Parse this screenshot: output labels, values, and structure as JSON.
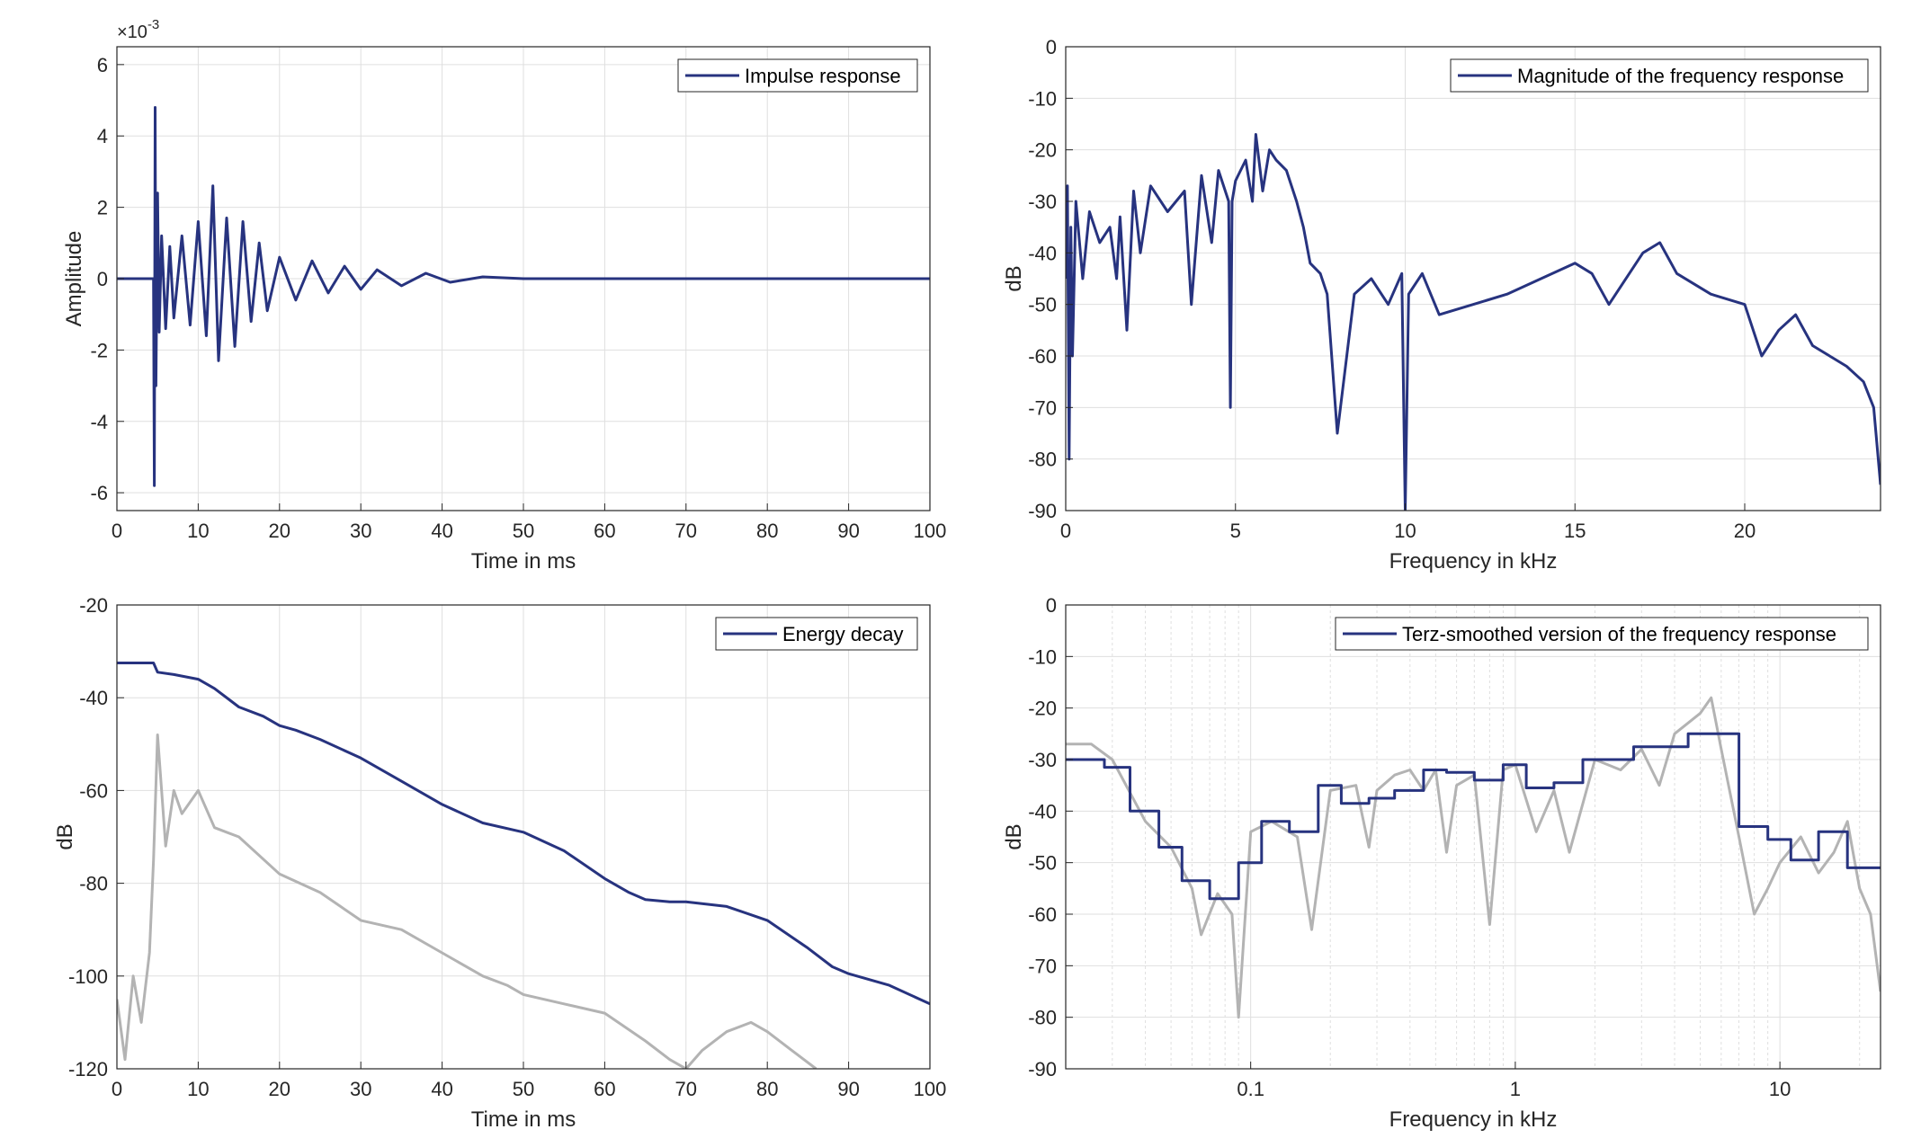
{
  "colors": {
    "series": "#27337f",
    "gray": "#b3b3b3",
    "grid": "#dfdfdf",
    "axis": "#262626"
  },
  "chart_data": [
    {
      "id": "impulse",
      "type": "line",
      "title": "",
      "xlabel": "Time in ms",
      "ylabel": "Amplitude",
      "xscale": "linear",
      "xlim": [
        0,
        100
      ],
      "ylim": [
        -6.5,
        6.5
      ],
      "xticks": [
        0,
        10,
        20,
        30,
        40,
        50,
        60,
        70,
        80,
        90,
        100
      ],
      "xtick_labels": [
        "0",
        "10",
        "20",
        "30",
        "40",
        "50",
        "60",
        "70",
        "80",
        "90",
        "100"
      ],
      "yticks": [
        -6,
        -4,
        -2,
        0,
        2,
        4,
        6
      ],
      "ytick_labels": [
        "-6",
        "-4",
        "-2",
        "0",
        "2",
        "4",
        "6"
      ],
      "y_exponent_label": "×10",
      "y_exponent": "-3",
      "grid": true,
      "legend": "top-right",
      "series": [
        {
          "name": "Impulse response",
          "color": "#27337f",
          "x": [
            0,
            4.5,
            4.6,
            4.7,
            4.8,
            5.0,
            5.2,
            5.5,
            6,
            6.5,
            7,
            8,
            9,
            10,
            11,
            11.8,
            12.5,
            13.5,
            14.5,
            15.5,
            16.5,
            17.5,
            18.5,
            20,
            22,
            24,
            26,
            28,
            30,
            32,
            35,
            38,
            41,
            45,
            50,
            60,
            70,
            80,
            90,
            100
          ],
          "y": [
            0,
            0,
            -5.8,
            4.8,
            -3.0,
            2.4,
            -1.5,
            1.2,
            -1.4,
            0.9,
            -1.1,
            1.2,
            -1.3,
            1.6,
            -1.6,
            2.6,
            -2.3,
            1.7,
            -1.9,
            1.6,
            -1.2,
            1.0,
            -0.9,
            0.6,
            -0.6,
            0.5,
            -0.4,
            0.35,
            -0.3,
            0.25,
            -0.2,
            0.15,
            -0.1,
            0.05,
            0,
            0,
            0,
            0,
            0,
            0
          ]
        }
      ]
    },
    {
      "id": "magnitude",
      "type": "line",
      "title": "",
      "xlabel": "Frequency in kHz",
      "ylabel": "dB",
      "xscale": "linear",
      "xlim": [
        0,
        24
      ],
      "ylim": [
        -90,
        0
      ],
      "xticks": [
        0,
        5,
        10,
        15,
        20
      ],
      "xtick_labels": [
        "0",
        "5",
        "10",
        "15",
        "20"
      ],
      "yticks": [
        -90,
        -80,
        -70,
        -60,
        -50,
        -40,
        -30,
        -20,
        -10,
        0
      ],
      "ytick_labels": [
        "-90",
        "-80",
        "-70",
        "-60",
        "-50",
        "-40",
        "-30",
        "-20",
        "-10",
        "0"
      ],
      "grid": true,
      "legend": "top-right",
      "series": [
        {
          "name": "Magnitude of the frequency response",
          "color": "#27337f",
          "x": [
            0,
            0.05,
            0.1,
            0.15,
            0.2,
            0.3,
            0.5,
            0.7,
            1.0,
            1.3,
            1.5,
            1.6,
            1.8,
            2.0,
            2.2,
            2.5,
            3.0,
            3.5,
            3.7,
            4.0,
            4.3,
            4.5,
            4.8,
            4.85,
            4.9,
            5.0,
            5.3,
            5.5,
            5.6,
            5.8,
            6.0,
            6.2,
            6.5,
            6.8,
            7.0,
            7.2,
            7.5,
            7.7,
            8.0,
            8.5,
            9.0,
            9.5,
            9.9,
            10.0,
            10.1,
            10.5,
            11,
            12,
            13,
            14,
            15,
            15.5,
            16,
            17,
            17.5,
            18,
            19,
            20,
            20.5,
            21,
            21.5,
            22,
            22.5,
            23,
            23.5,
            23.8,
            24
          ],
          "y": [
            -45,
            -27,
            -80,
            -35,
            -60,
            -30,
            -45,
            -32,
            -38,
            -35,
            -45,
            -33,
            -55,
            -28,
            -40,
            -27,
            -32,
            -28,
            -50,
            -25,
            -38,
            -24,
            -30,
            -70,
            -30,
            -26,
            -22,
            -30,
            -17,
            -28,
            -20,
            -22,
            -24,
            -30,
            -35,
            -42,
            -44,
            -48,
            -75,
            -48,
            -45,
            -50,
            -44,
            -90,
            -48,
            -44,
            -52,
            -50,
            -48,
            -45,
            -42,
            -44,
            -50,
            -40,
            -38,
            -44,
            -48,
            -50,
            -60,
            -55,
            -52,
            -58,
            -60,
            -62,
            -65,
            -70,
            -85
          ]
        }
      ]
    },
    {
      "id": "energy",
      "type": "line",
      "title": "",
      "xlabel": "Time in ms",
      "ylabel": "dB",
      "xscale": "linear",
      "xlim": [
        0,
        100
      ],
      "ylim": [
        -120,
        -20
      ],
      "xticks": [
        0,
        10,
        20,
        30,
        40,
        50,
        60,
        70,
        80,
        90,
        100
      ],
      "xtick_labels": [
        "0",
        "10",
        "20",
        "30",
        "40",
        "50",
        "60",
        "70",
        "80",
        "90",
        "100"
      ],
      "yticks": [
        -120,
        -100,
        -80,
        -60,
        -40,
        -20
      ],
      "ytick_labels": [
        "-120",
        "-100",
        "-80",
        "-60",
        "-40",
        "-20"
      ],
      "grid": true,
      "legend": "top-right",
      "series": [
        {
          "name": "Energy decay",
          "color": "#27337f",
          "x": [
            0,
            4.5,
            5,
            7,
            10,
            12,
            15,
            18,
            20,
            22,
            25,
            30,
            35,
            40,
            45,
            50,
            55,
            60,
            63,
            65,
            68,
            70,
            75,
            80,
            85,
            88,
            90,
            95,
            100
          ],
          "y": [
            -32.5,
            -32.5,
            -34.5,
            -35,
            -36,
            -38,
            -42,
            -44,
            -46,
            -47,
            -49,
            -53,
            -58,
            -63,
            -67,
            -69,
            -73,
            -79,
            -82,
            -83.5,
            -84,
            -84,
            -85,
            -88,
            -94,
            -98,
            -99.5,
            -102,
            -106
          ]
        },
        {
          "name": "",
          "color": "#b3b3b3",
          "x": [
            0,
            1,
            2,
            3,
            4,
            4.5,
            5,
            6,
            7,
            8,
            10,
            12,
            15,
            20,
            25,
            30,
            35,
            40,
            45,
            48,
            50,
            55,
            60,
            65,
            68,
            70,
            72,
            75,
            78,
            80,
            83,
            86
          ],
          "y": [
            -105,
            -118,
            -100,
            -110,
            -95,
            -75,
            -48,
            -72,
            -60,
            -65,
            -60,
            -68,
            -70,
            -78,
            -82,
            -88,
            -90,
            -95,
            -100,
            -102,
            -104,
            -106,
            -108,
            -114,
            -118,
            -120,
            -116,
            -112,
            -110,
            -112,
            -116,
            -120
          ]
        }
      ]
    },
    {
      "id": "terz",
      "type": "line",
      "title": "",
      "xlabel": "Frequency in kHz",
      "ylabel": "dB",
      "xscale": "log",
      "xlim": [
        0.02,
        24
      ],
      "ylim": [
        -90,
        0
      ],
      "xticks": [
        0.1,
        1,
        10
      ],
      "xtick_labels": [
        "0.1",
        "1",
        "10"
      ],
      "yticks": [
        -90,
        -80,
        -70,
        -60,
        -50,
        -40,
        -30,
        -20,
        -10,
        0
      ],
      "ytick_labels": [
        "-90",
        "-80",
        "-70",
        "-60",
        "-50",
        "-40",
        "-30",
        "-20",
        "-10",
        "0"
      ],
      "grid": true,
      "legend": "top-right",
      "series": [
        {
          "name": "Terz-smoothed version of the frequency response",
          "color": "#27337f",
          "step": true,
          "x": [
            0.02,
            0.028,
            0.035,
            0.045,
            0.055,
            0.07,
            0.09,
            0.11,
            0.14,
            0.18,
            0.22,
            0.28,
            0.35,
            0.45,
            0.55,
            0.7,
            0.9,
            1.1,
            1.4,
            1.8,
            2.2,
            2.8,
            3.5,
            4.5,
            5.5,
            7.0,
            9.0,
            11,
            14,
            18,
            24
          ],
          "y": [
            -30,
            -31.5,
            -40,
            -47,
            -53.5,
            -57,
            -50,
            -42,
            -44,
            -35,
            -38.5,
            -37.5,
            -36,
            -32,
            -32.5,
            -34,
            -31,
            -35.5,
            -34.5,
            -30,
            -30,
            -27.5,
            -27.5,
            -25,
            -25,
            -43,
            -45.5,
            -49.5,
            -44,
            -51,
            -51
          ]
        },
        {
          "name": "",
          "color": "#b3b3b3",
          "x": [
            0.02,
            0.025,
            0.03,
            0.04,
            0.05,
            0.06,
            0.065,
            0.075,
            0.085,
            0.09,
            0.1,
            0.12,
            0.15,
            0.17,
            0.2,
            0.25,
            0.28,
            0.3,
            0.35,
            0.4,
            0.45,
            0.5,
            0.55,
            0.6,
            0.7,
            0.8,
            0.9,
            1.0,
            1.2,
            1.4,
            1.6,
            2.0,
            2.5,
            3.0,
            3.5,
            4.0,
            5.0,
            5.5,
            6.0,
            7.0,
            8.0,
            9.0,
            10,
            12,
            14,
            16,
            18,
            20,
            22,
            24
          ],
          "y": [
            -27,
            -27,
            -30,
            -42,
            -47,
            -55,
            -64,
            -56,
            -60,
            -80,
            -44,
            -42,
            -45,
            -63,
            -36,
            -35,
            -47,
            -36,
            -33,
            -32,
            -36,
            -32,
            -48,
            -35,
            -33,
            -62,
            -32,
            -31,
            -44,
            -36,
            -48,
            -30,
            -32,
            -28,
            -35,
            -25,
            -21,
            -18,
            -28,
            -45,
            -60,
            -55,
            -50,
            -45,
            -52,
            -48,
            -42,
            -55,
            -60,
            -75
          ]
        }
      ]
    }
  ]
}
